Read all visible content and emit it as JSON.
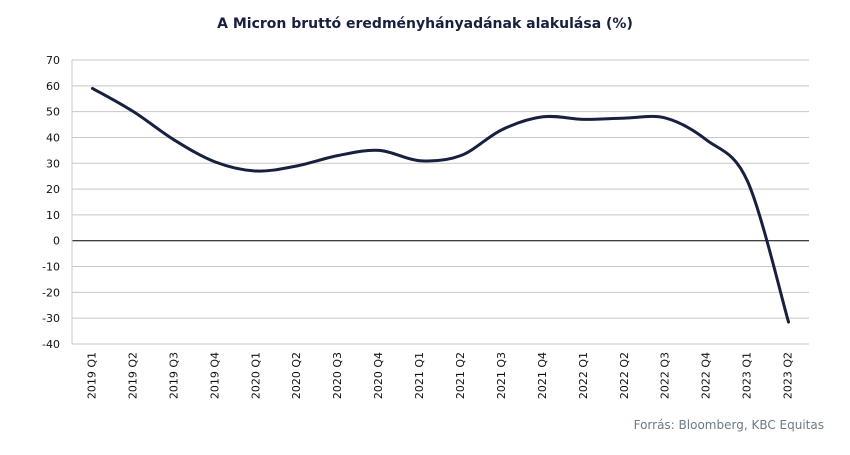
{
  "chart_data": {
    "type": "line",
    "title": "A Micron bruttó eredményhányadának  alakulása (%)",
    "source": "Forrás: Bloomberg, KBC Equitas",
    "categories": [
      "2019 Q1",
      "2019 Q2",
      "2019 Q3",
      "2019 Q4",
      "2020 Q1",
      "2020 Q2",
      "2020 Q3",
      "2020 Q4",
      "2021 Q1",
      "2021 Q2",
      "2021 Q3",
      "2021 Q4",
      "2022 Q1",
      "2022 Q2",
      "2022 Q3",
      "2022 Q4",
      "2023 Q1",
      "2023 Q2"
    ],
    "series": [
      {
        "values": [
          59,
          50,
          39,
          30.5,
          27,
          29,
          33,
          35,
          31,
          33,
          43,
          48,
          47,
          47.5,
          47.5,
          39,
          23,
          -31.5
        ]
      }
    ],
    "ylim": [
      -40,
      70
    ],
    "yticks": [
      -40,
      -30,
      -20,
      -10,
      0,
      10,
      20,
      30,
      40,
      50,
      60,
      70
    ],
    "grid": true,
    "legend": "none",
    "colors": {
      "line": "#17203f",
      "grid": "#c8c8c8",
      "zero": "#000000"
    }
  }
}
